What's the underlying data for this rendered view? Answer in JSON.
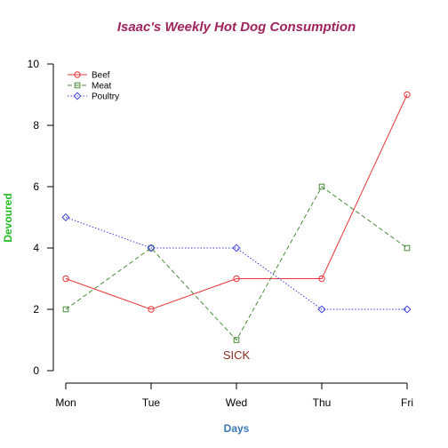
{
  "chart_data": {
    "type": "line",
    "title": "Isaac's Weekly Hot Dog Consumption",
    "title_color": "#a0245e",
    "xlabel": "Days",
    "xlabel_color": "#3a78b4",
    "ylabel": "Devoured",
    "ylabel_color": "#22bb22",
    "categories": [
      "Mon",
      "Tue",
      "Wed",
      "Thu",
      "Fri"
    ],
    "ylim": [
      0,
      10
    ],
    "yticks": [
      "0",
      "2",
      "4",
      "6",
      "8",
      "10"
    ],
    "grid": false,
    "legend_position": "top-left",
    "series": [
      {
        "name": "Beef",
        "values": [
          3,
          2,
          3,
          3,
          9
        ],
        "color": "#e8363a",
        "line": "solid",
        "marker": "circle"
      },
      {
        "name": "Meat",
        "values": [
          2,
          4,
          1,
          6,
          4
        ],
        "color": "#4a8c3a",
        "line": "dashed",
        "marker": "square"
      },
      {
        "name": "Poultry",
        "values": [
          5,
          4,
          4,
          2,
          2
        ],
        "color": "#3b3bd8",
        "line": "dotted",
        "marker": "diamond"
      }
    ],
    "annotations": [
      {
        "text": "SICK",
        "x": "Wed",
        "y": 0.5,
        "color": "#8b2a1e"
      }
    ]
  }
}
